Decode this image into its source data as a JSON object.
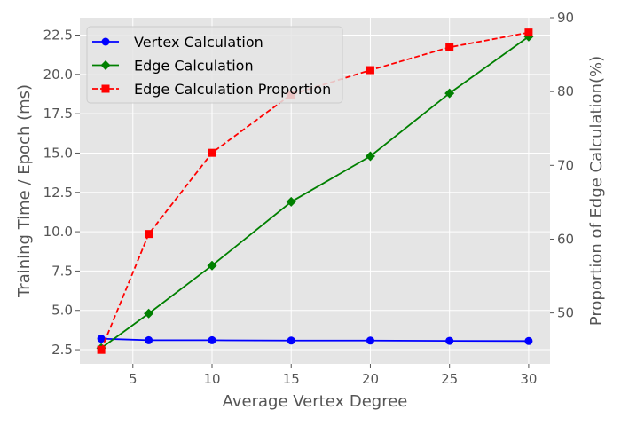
{
  "chart_data": {
    "type": "line",
    "x": [
      3,
      6,
      10,
      15,
      20,
      25,
      30
    ],
    "xlabel": "Average Vertex Degree",
    "xticks": [
      "5",
      "10",
      "15",
      "20",
      "25",
      "30"
    ],
    "xlim": [
      1.65,
      31.35
    ],
    "ylabel_left": "Training Time / Epoch (ms)",
    "yticks_left": [
      "2.5",
      "5.0",
      "7.5",
      "10.0",
      "12.5",
      "15.0",
      "17.5",
      "20.0",
      "22.5"
    ],
    "ylim_left": [
      1.6,
      23.6
    ],
    "ylabel_right": "Proportion of Edge Calculation(%)",
    "yticks_right": [
      "50",
      "60",
      "70",
      "80",
      "90"
    ],
    "ylim_right": [
      43.1,
      90
    ],
    "grid": true,
    "legend_position": "top-left",
    "series": [
      {
        "name": "Vertex Calculation",
        "axis": "left",
        "values": [
          3.2,
          3.1,
          3.1,
          3.08,
          3.08,
          3.06,
          3.05
        ],
        "color": "#0000ff",
        "marker": "circle",
        "linestyle": "solid"
      },
      {
        "name": "Edge Calculation",
        "axis": "left",
        "values": [
          2.6,
          4.8,
          7.85,
          11.9,
          14.8,
          18.8,
          22.4
        ],
        "color": "#008000",
        "marker": "diamond",
        "linestyle": "solid"
      },
      {
        "name": "Edge Calculation Proportion",
        "axis": "right",
        "values": [
          45,
          60.7,
          71.7,
          79.6,
          82.9,
          86,
          88
        ],
        "color": "#ff0000",
        "marker": "square",
        "linestyle": "dashed"
      }
    ]
  }
}
